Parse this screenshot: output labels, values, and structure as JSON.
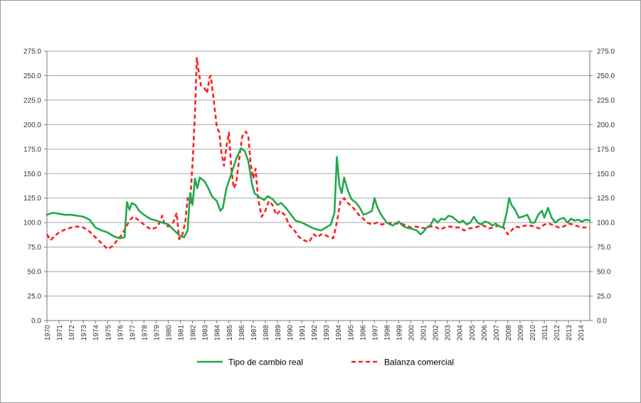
{
  "chart_data": {
    "type": "line",
    "title": "",
    "xlabel": "",
    "ylabel": "",
    "x_start": 1970,
    "x_end": 2014.75,
    "ylim": [
      0,
      275
    ],
    "y_ticks": [
      "0.0",
      "25.0",
      "50.0",
      "75.0",
      "100.0",
      "125.0",
      "150.0",
      "175.0",
      "200.0",
      "225.0",
      "250.0",
      "275.0"
    ],
    "x_tick_labels": [
      "1970",
      "1971",
      "1972",
      "1973",
      "1974",
      "1975",
      "1976",
      "1977",
      "1978",
      "1979",
      "1980",
      "1981",
      "1982",
      "1983",
      "1984",
      "1985",
      "1986",
      "1987",
      "1988",
      "1989",
      "1990",
      "1991",
      "1992",
      "1993",
      "1994",
      "1995",
      "1996",
      "1997",
      "1998",
      "1999",
      "2000",
      "2001",
      "2002",
      "2003",
      "2004",
      "2005",
      "2006",
      "2007",
      "2008",
      "2009",
      "2010",
      "2011",
      "2012",
      "2013",
      "2014"
    ],
    "grid": true,
    "legend_position": "bottom",
    "series": [
      {
        "name": "Tipo de cambio real",
        "color": "#22a84a",
        "style": "solid",
        "points": [
          [
            1970.0,
            108
          ],
          [
            1970.5,
            110
          ],
          [
            1971.0,
            109
          ],
          [
            1971.5,
            108
          ],
          [
            1972.0,
            108
          ],
          [
            1972.5,
            107
          ],
          [
            1973.0,
            106
          ],
          [
            1973.5,
            103
          ],
          [
            1974.0,
            95
          ],
          [
            1974.5,
            92
          ],
          [
            1975.0,
            90
          ],
          [
            1975.5,
            86
          ],
          [
            1976.0,
            84
          ],
          [
            1976.4,
            85
          ],
          [
            1976.6,
            121
          ],
          [
            1976.8,
            113
          ],
          [
            1977.0,
            120
          ],
          [
            1977.3,
            118
          ],
          [
            1977.6,
            112
          ],
          [
            1978.0,
            108
          ],
          [
            1978.5,
            104
          ],
          [
            1979.0,
            102
          ],
          [
            1979.5,
            100
          ],
          [
            1980.0,
            98
          ],
          [
            1980.5,
            92
          ],
          [
            1981.0,
            86
          ],
          [
            1981.3,
            85
          ],
          [
            1981.6,
            92
          ],
          [
            1981.8,
            130
          ],
          [
            1982.0,
            118
          ],
          [
            1982.2,
            145
          ],
          [
            1982.4,
            135
          ],
          [
            1982.6,
            146
          ],
          [
            1982.8,
            144
          ],
          [
            1983.0,
            142
          ],
          [
            1983.3,
            135
          ],
          [
            1983.6,
            127
          ],
          [
            1984.0,
            122
          ],
          [
            1984.3,
            112
          ],
          [
            1984.5,
            115
          ],
          [
            1984.8,
            135
          ],
          [
            1985.2,
            150
          ],
          [
            1985.6,
            165
          ],
          [
            1986.0,
            176
          ],
          [
            1986.3,
            173
          ],
          [
            1986.6,
            163
          ],
          [
            1986.9,
            140
          ],
          [
            1987.1,
            130
          ],
          [
            1987.5,
            126
          ],
          [
            1987.9,
            123
          ],
          [
            1988.2,
            127
          ],
          [
            1988.6,
            124
          ],
          [
            1989.0,
            118
          ],
          [
            1989.3,
            120
          ],
          [
            1989.7,
            115
          ],
          [
            1990.0,
            110
          ],
          [
            1990.5,
            102
          ],
          [
            1991.0,
            100
          ],
          [
            1991.5,
            97
          ],
          [
            1992.0,
            94
          ],
          [
            1992.6,
            92
          ],
          [
            1993.0,
            95
          ],
          [
            1993.4,
            98
          ],
          [
            1993.7,
            110
          ],
          [
            1993.9,
            167
          ],
          [
            1994.1,
            138
          ],
          [
            1994.3,
            130
          ],
          [
            1994.5,
            146
          ],
          [
            1994.8,
            133
          ],
          [
            1995.1,
            124
          ],
          [
            1995.5,
            120
          ],
          [
            1995.8,
            115
          ],
          [
            1996.1,
            108
          ],
          [
            1996.5,
            110
          ],
          [
            1996.8,
            112
          ],
          [
            1997.0,
            125
          ],
          [
            1997.2,
            117
          ],
          [
            1997.5,
            109
          ],
          [
            1998.0,
            100
          ],
          [
            1998.5,
            97
          ],
          [
            1999.0,
            101
          ],
          [
            1999.3,
            97
          ],
          [
            1999.6,
            95
          ],
          [
            2000.0,
            94
          ],
          [
            2000.5,
            92
          ],
          [
            2000.8,
            88
          ],
          [
            2001.0,
            90
          ],
          [
            2001.3,
            95
          ],
          [
            2001.6,
            97
          ],
          [
            2001.9,
            104
          ],
          [
            2002.2,
            100
          ],
          [
            2002.5,
            104
          ],
          [
            2002.8,
            103
          ],
          [
            2003.1,
            107
          ],
          [
            2003.4,
            106
          ],
          [
            2003.7,
            103
          ],
          [
            2004.0,
            100
          ],
          [
            2004.3,
            102
          ],
          [
            2004.6,
            98
          ],
          [
            2004.9,
            100
          ],
          [
            2005.2,
            106
          ],
          [
            2005.5,
            100
          ],
          [
            2005.8,
            98
          ],
          [
            2006.1,
            101
          ],
          [
            2006.4,
            100
          ],
          [
            2006.7,
            97
          ],
          [
            2007.0,
            99
          ],
          [
            2007.3,
            96
          ],
          [
            2007.6,
            95
          ],
          [
            2007.9,
            110
          ],
          [
            2008.1,
            125
          ],
          [
            2008.3,
            118
          ],
          [
            2008.6,
            113
          ],
          [
            2008.9,
            105
          ],
          [
            2009.2,
            106
          ],
          [
            2009.6,
            108
          ],
          [
            2009.9,
            100
          ],
          [
            2010.2,
            100
          ],
          [
            2010.5,
            108
          ],
          [
            2010.8,
            112
          ],
          [
            2011.0,
            105
          ],
          [
            2011.3,
            115
          ],
          [
            2011.6,
            105
          ],
          [
            2011.9,
            100
          ],
          [
            2012.2,
            103
          ],
          [
            2012.6,
            105
          ],
          [
            2012.9,
            100
          ],
          [
            2013.2,
            104
          ],
          [
            2013.5,
            102
          ],
          [
            2013.8,
            103
          ],
          [
            2014.1,
            101
          ],
          [
            2014.4,
            103
          ],
          [
            2014.75,
            102
          ]
        ]
      },
      {
        "name": "Balanza comercial",
        "color": "#ff1e1e",
        "style": "dashed",
        "points": [
          [
            1970.0,
            88
          ],
          [
            1970.3,
            82
          ],
          [
            1970.6,
            86
          ],
          [
            1971.0,
            90
          ],
          [
            1971.5,
            93
          ],
          [
            1972.0,
            95
          ],
          [
            1972.5,
            96
          ],
          [
            1973.0,
            95
          ],
          [
            1973.5,
            91
          ],
          [
            1974.0,
            85
          ],
          [
            1974.5,
            79
          ],
          [
            1975.0,
            73
          ],
          [
            1975.4,
            76
          ],
          [
            1975.8,
            82
          ],
          [
            1976.2,
            88
          ],
          [
            1976.5,
            95
          ],
          [
            1976.8,
            102
          ],
          [
            1977.1,
            106
          ],
          [
            1977.4,
            104
          ],
          [
            1977.8,
            100
          ],
          [
            1978.2,
            96
          ],
          [
            1978.6,
            93
          ],
          [
            1979.0,
            95
          ],
          [
            1979.3,
            100
          ],
          [
            1979.5,
            107
          ],
          [
            1979.7,
            98
          ],
          [
            1980.0,
            96
          ],
          [
            1980.4,
            100
          ],
          [
            1980.7,
            110
          ],
          [
            1980.9,
            83
          ],
          [
            1981.1,
            85
          ],
          [
            1981.4,
            100
          ],
          [
            1981.6,
            125
          ],
          [
            1981.8,
            120
          ],
          [
            1982.0,
            160
          ],
          [
            1982.2,
            210
          ],
          [
            1982.35,
            268
          ],
          [
            1982.5,
            255
          ],
          [
            1982.7,
            240
          ],
          [
            1983.0,
            237
          ],
          [
            1983.2,
            232
          ],
          [
            1983.4,
            248
          ],
          [
            1983.5,
            250
          ],
          [
            1983.7,
            230
          ],
          [
            1984.0,
            198
          ],
          [
            1984.2,
            192
          ],
          [
            1984.4,
            170
          ],
          [
            1984.6,
            158
          ],
          [
            1984.8,
            178
          ],
          [
            1985.0,
            192
          ],
          [
            1985.2,
            155
          ],
          [
            1985.4,
            135
          ],
          [
            1985.6,
            140
          ],
          [
            1985.9,
            170
          ],
          [
            1986.1,
            188
          ],
          [
            1986.4,
            193
          ],
          [
            1986.6,
            188
          ],
          [
            1986.8,
            160
          ],
          [
            1987.0,
            145
          ],
          [
            1987.2,
            155
          ],
          [
            1987.4,
            125
          ],
          [
            1987.7,
            106
          ],
          [
            1988.0,
            112
          ],
          [
            1988.3,
            122
          ],
          [
            1988.6,
            118
          ],
          [
            1988.9,
            108
          ],
          [
            1989.2,
            112
          ],
          [
            1989.6,
            108
          ],
          [
            1990.0,
            97
          ],
          [
            1990.4,
            92
          ],
          [
            1990.8,
            85
          ],
          [
            1991.2,
            82
          ],
          [
            1991.6,
            80
          ],
          [
            1992.0,
            88
          ],
          [
            1992.3,
            85
          ],
          [
            1992.6,
            88
          ],
          [
            1993.0,
            87
          ],
          [
            1993.3,
            85
          ],
          [
            1993.6,
            84
          ],
          [
            1993.9,
            100
          ],
          [
            1994.2,
            122
          ],
          [
            1994.5,
            125
          ],
          [
            1994.8,
            120
          ],
          [
            1995.1,
            117
          ],
          [
            1995.4,
            113
          ],
          [
            1995.7,
            108
          ],
          [
            1996.0,
            105
          ],
          [
            1996.4,
            100
          ],
          [
            1996.8,
            98
          ],
          [
            1997.2,
            100
          ],
          [
            1997.6,
            98
          ],
          [
            1998.0,
            99
          ],
          [
            1998.4,
            100
          ],
          [
            1998.8,
            99
          ],
          [
            1999.2,
            99
          ],
          [
            1999.6,
            97
          ],
          [
            2000.0,
            95
          ],
          [
            2000.4,
            96
          ],
          [
            2000.8,
            95
          ],
          [
            2001.2,
            94
          ],
          [
            2001.6,
            96
          ],
          [
            2002.0,
            96
          ],
          [
            2002.4,
            93
          ],
          [
            2002.8,
            95
          ],
          [
            2003.2,
            96
          ],
          [
            2003.6,
            95
          ],
          [
            2004.0,
            95
          ],
          [
            2004.4,
            92
          ],
          [
            2004.8,
            94
          ],
          [
            2005.2,
            95
          ],
          [
            2005.6,
            96
          ],
          [
            2006.0,
            97
          ],
          [
            2006.4,
            94
          ],
          [
            2006.8,
            95
          ],
          [
            2007.2,
            97
          ],
          [
            2007.6,
            96
          ],
          [
            2008.0,
            88
          ],
          [
            2008.3,
            92
          ],
          [
            2008.6,
            96
          ],
          [
            2009.0,
            95
          ],
          [
            2009.4,
            97
          ],
          [
            2009.8,
            97
          ],
          [
            2010.2,
            96
          ],
          [
            2010.6,
            94
          ],
          [
            2011.0,
            98
          ],
          [
            2011.4,
            99
          ],
          [
            2011.8,
            97
          ],
          [
            2012.2,
            95
          ],
          [
            2012.6,
            96
          ],
          [
            2013.0,
            99
          ],
          [
            2013.4,
            98
          ],
          [
            2013.8,
            96
          ],
          [
            2014.2,
            95
          ],
          [
            2014.75,
            95
          ]
        ]
      }
    ]
  }
}
